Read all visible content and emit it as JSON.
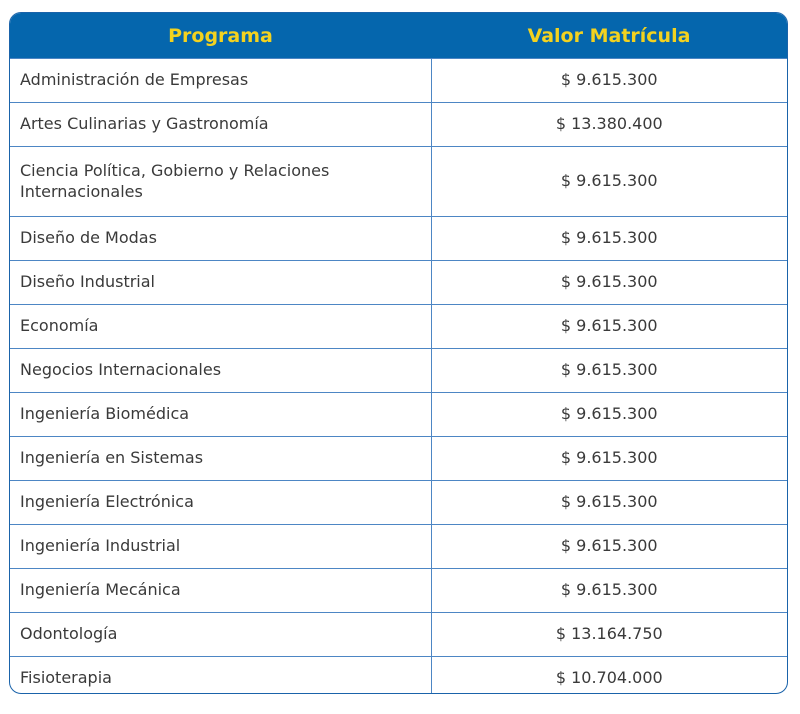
{
  "header": {
    "program": "Programa",
    "value": "Valor Matrícula"
  },
  "rows": [
    {
      "program": "Administración de Empresas",
      "value": "$ 9.615.300"
    },
    {
      "program": "Artes Culinarias y Gastronomía",
      "value": "$ 13.380.400"
    },
    {
      "program": "Ciencia Política, Gobierno y Relaciones Internacionales",
      "value": "$ 9.615.300"
    },
    {
      "program": "Diseño de Modas",
      "value": "$ 9.615.300"
    },
    {
      "program": "Diseño Industrial",
      "value": "$ 9.615.300"
    },
    {
      "program": "Economía",
      "value": "$ 9.615.300"
    },
    {
      "program": "Negocios Internacionales",
      "value": "$ 9.615.300"
    },
    {
      "program": "Ingeniería Biomédica",
      "value": "$ 9.615.300"
    },
    {
      "program": "Ingeniería en Sistemas",
      "value": "$ 9.615.300"
    },
    {
      "program": "Ingeniería Electrónica",
      "value": "$ 9.615.300"
    },
    {
      "program": "Ingeniería Industrial",
      "value": "$ 9.615.300"
    },
    {
      "program": "Ingeniería Mecánica",
      "value": "$ 9.615.300"
    },
    {
      "program": "Odontología",
      "value": "$ 13.164.750"
    },
    {
      "program": "Fisioterapia",
      "value": "$ 10.704.000"
    }
  ],
  "colors": {
    "header_bg": "#0566ad",
    "header_text": "#f3d21f",
    "border": "#4d86c4",
    "cell_text": "#3a3a3a"
  }
}
